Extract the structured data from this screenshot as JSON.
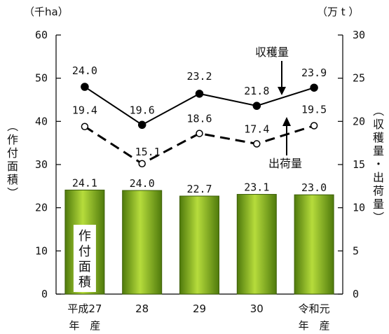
{
  "chart_data": {
    "type": "bar+line",
    "categories": [
      {
        "line1": "平成27",
        "line2": "年　産"
      },
      {
        "line1": "28",
        "line2": ""
      },
      {
        "line1": "29",
        "line2": ""
      },
      {
        "line1": "30",
        "line2": ""
      },
      {
        "line1": "令和元",
        "line2": "年　産"
      }
    ],
    "left_axis": {
      "unit": "（千ha）",
      "label_chars": [
        "（",
        "作",
        "付",
        "面",
        "積",
        "）"
      ],
      "ylim": [
        0,
        60
      ],
      "ticks": [
        "0",
        "10",
        "20",
        "30",
        "40",
        "50",
        "60"
      ]
    },
    "right_axis": {
      "unit": "（万 t ）",
      "label_chars": [
        "（",
        "収",
        "穫",
        "量",
        "・",
        "出",
        "荷",
        "量",
        "）"
      ],
      "ylim": [
        0,
        30
      ],
      "ticks": [
        "0",
        "5",
        "10",
        "15",
        "20",
        "25",
        "30"
      ]
    },
    "bars": {
      "axis": "left",
      "color": "#7aa81e",
      "values": [
        24.1,
        24.0,
        22.7,
        23.1,
        23.0
      ],
      "labels": [
        "24.1",
        "24.0",
        "22.7",
        "23.1",
        "23.0"
      ],
      "inner_label_chars": [
        "作",
        "付",
        "面",
        "積"
      ]
    },
    "series": [
      {
        "name": "収穫量",
        "axis": "right",
        "style": "solid",
        "marker": "filled",
        "values": [
          24.0,
          19.6,
          23.2,
          21.8,
          23.9
        ],
        "labels": [
          "24.0",
          "19.6",
          "23.2",
          "21.8",
          "23.9"
        ]
      },
      {
        "name": "出荷量",
        "axis": "right",
        "style": "dashed",
        "marker": "hollow",
        "values": [
          19.4,
          15.1,
          18.6,
          17.4,
          19.5
        ],
        "labels": [
          "19.4",
          "15.1",
          "18.6",
          "17.4",
          "19.5"
        ]
      }
    ],
    "grid": false
  }
}
